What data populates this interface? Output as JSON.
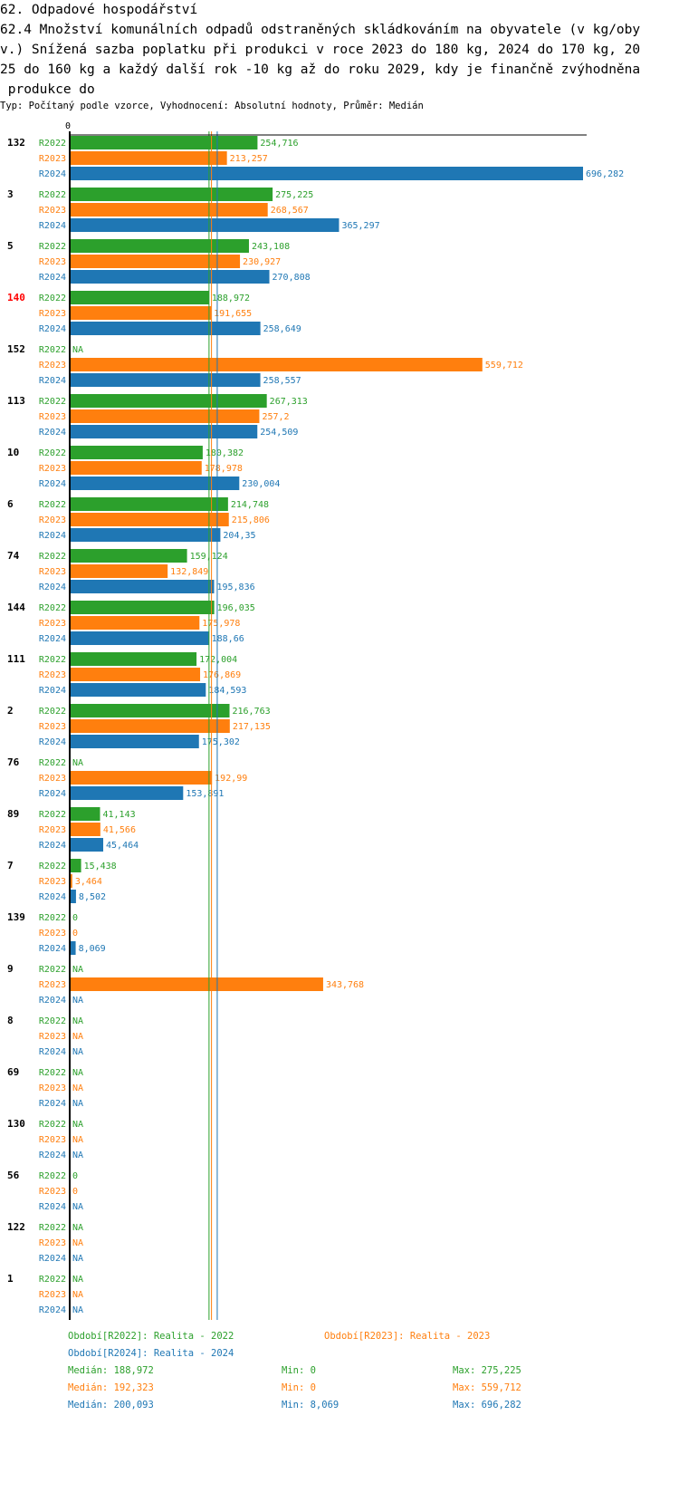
{
  "header": {
    "section": "62. Odpadové hospodářství",
    "title_line1": "62.4 Množství komunálních odpadů odstraněných skládkováním na obyvatele (v kg/oby",
    "title_line2": "v.) Snížená sazba poplatku při produkci v roce 2023 do 180 kg, 2024 do 170 kg, 20",
    "title_line3": "25 do 160 kg a každý další rok -10 kg až do roku 2029, kdy je finančně zvýhodněna",
    "title_line4": " produkce do",
    "subtitle": "Typ: Počítaný podle vzorce, Vyhodnocení: Absolutní hodnoty, Průměr: Medián"
  },
  "colors": {
    "R2022": "#2ca02c",
    "R2023": "#ff7f0e",
    "R2024": "#1f77b4",
    "highlight": "#ff0000"
  },
  "chart_data": {
    "type": "bar",
    "orientation": "horizontal",
    "axis_zero_label": "0",
    "xlim": [
      0,
      696.282
    ],
    "series_names": [
      "R2022",
      "R2023",
      "R2024"
    ],
    "groups": [
      {
        "id": "132",
        "highlight": false,
        "values": [
          254.716,
          213.257,
          696.282
        ],
        "labels": [
          "254,716",
          "213,257",
          "696,282"
        ]
      },
      {
        "id": "3",
        "highlight": false,
        "values": [
          275.225,
          268.567,
          365.297
        ],
        "labels": [
          "275,225",
          "268,567",
          "365,297"
        ]
      },
      {
        "id": "5",
        "highlight": false,
        "values": [
          243.108,
          230.927,
          270.808
        ],
        "labels": [
          "243,108",
          "230,927",
          "270,808"
        ]
      },
      {
        "id": "140",
        "highlight": true,
        "values": [
          188.972,
          191.655,
          258.649
        ],
        "labels": [
          "188,972",
          "191,655",
          "258,649"
        ]
      },
      {
        "id": "152",
        "highlight": false,
        "values": [
          null,
          559.712,
          258.557
        ],
        "labels": [
          "NA",
          "559,712",
          "258,557"
        ]
      },
      {
        "id": "113",
        "highlight": false,
        "values": [
          267.313,
          257.2,
          254.509
        ],
        "labels": [
          "267,313",
          "257,2",
          "254,509"
        ]
      },
      {
        "id": "10",
        "highlight": false,
        "values": [
          180.382,
          178.978,
          230.004
        ],
        "labels": [
          "180,382",
          "178,978",
          "230,004"
        ]
      },
      {
        "id": "6",
        "highlight": false,
        "values": [
          214.748,
          215.806,
          204.35
        ],
        "labels": [
          "214,748",
          "215,806",
          "204,35"
        ]
      },
      {
        "id": "74",
        "highlight": false,
        "values": [
          159.124,
          132.849,
          195.836
        ],
        "labels": [
          "159,124",
          "132,849",
          "195,836"
        ]
      },
      {
        "id": "144",
        "highlight": false,
        "values": [
          196.035,
          175.978,
          188.66
        ],
        "labels": [
          "196,035",
          "175,978",
          "188,66"
        ]
      },
      {
        "id": "111",
        "highlight": false,
        "values": [
          172.004,
          176.869,
          184.593
        ],
        "labels": [
          "172,004",
          "176,869",
          "184,593"
        ]
      },
      {
        "id": "2",
        "highlight": false,
        "values": [
          216.763,
          217.135,
          175.302
        ],
        "labels": [
          "216,763",
          "217,135",
          "175,302"
        ]
      },
      {
        "id": "76",
        "highlight": false,
        "values": [
          null,
          192.99,
          153.891
        ],
        "labels": [
          "NA",
          "192,99",
          "153,891"
        ]
      },
      {
        "id": "89",
        "highlight": false,
        "values": [
          41.143,
          41.566,
          45.464
        ],
        "labels": [
          "41,143",
          "41,566",
          "45,464"
        ]
      },
      {
        "id": "7",
        "highlight": false,
        "values": [
          15.438,
          3.464,
          8.502
        ],
        "labels": [
          "15,438",
          "3,464",
          "8,502"
        ]
      },
      {
        "id": "139",
        "highlight": false,
        "values": [
          0,
          0,
          8.069
        ],
        "labels": [
          "0",
          "0",
          "8,069"
        ]
      },
      {
        "id": "9",
        "highlight": false,
        "values": [
          null,
          343.768,
          null
        ],
        "labels": [
          "NA",
          "343,768",
          "NA"
        ]
      },
      {
        "id": "8",
        "highlight": false,
        "values": [
          null,
          null,
          null
        ],
        "labels": [
          "NA",
          "NA",
          "NA"
        ]
      },
      {
        "id": "69",
        "highlight": false,
        "values": [
          null,
          null,
          null
        ],
        "labels": [
          "NA",
          "NA",
          "NA"
        ]
      },
      {
        "id": "130",
        "highlight": false,
        "values": [
          null,
          null,
          null
        ],
        "labels": [
          "NA",
          "NA",
          "NA"
        ]
      },
      {
        "id": "56",
        "highlight": false,
        "values": [
          0,
          0,
          null
        ],
        "labels": [
          "0",
          "0",
          "NA"
        ]
      },
      {
        "id": "122",
        "highlight": false,
        "values": [
          null,
          null,
          null
        ],
        "labels": [
          "NA",
          "NA",
          "NA"
        ]
      },
      {
        "id": "1",
        "highlight": false,
        "values": [
          null,
          null,
          null
        ],
        "labels": [
          "NA",
          "NA",
          "NA"
        ]
      }
    ],
    "medians": [
      188.972,
      192.323,
      200.093
    ]
  },
  "legend": {
    "r2022": "Období[R2022]: Realita - 2022",
    "r2023": "Období[R2023]: Realita - 2023",
    "r2024": "Období[R2024]: Realita - 2024"
  },
  "stats": [
    {
      "median": "Medián: 188,972",
      "min": "Min: 0",
      "max": "Max: 275,225"
    },
    {
      "median": "Medián: 192,323",
      "min": "Min: 0",
      "max": "Max: 559,712"
    },
    {
      "median": "Medián: 200,093",
      "min": "Min: 8,069",
      "max": "Max: 696,282"
    }
  ]
}
